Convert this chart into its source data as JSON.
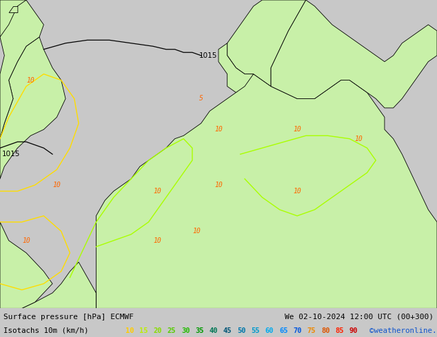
{
  "title_line1": "Surface pressure [hPa] ECMWF",
  "title_line2": "Isotachs 10m (km/h)",
  "date_str": "We 02-10-2024 12:00 UTC (00+300)",
  "credit": "©weatheronline.co.uk",
  "sea_color": "#d8d8d8",
  "land_color": "#c8f0a8",
  "figsize": [
    6.34,
    4.9
  ],
  "dpi": 100,
  "legend_values": [
    "10",
    "15",
    "20",
    "25",
    "30",
    "35",
    "40",
    "45",
    "50",
    "55",
    "60",
    "65",
    "70",
    "75",
    "80",
    "85",
    "90"
  ],
  "legend_colors": [
    "#ffcc00",
    "#bbee00",
    "#88dd00",
    "#55cc00",
    "#22bb00",
    "#009900",
    "#007755",
    "#005577",
    "#0077aa",
    "#0099cc",
    "#00aaee",
    "#0088ff",
    "#0055dd",
    "#ee8800",
    "#dd5500",
    "#ff2200",
    "#cc0000"
  ],
  "bottom_bar_height": 0.085,
  "label_fontsize": 8.2,
  "text_color": "#000000"
}
